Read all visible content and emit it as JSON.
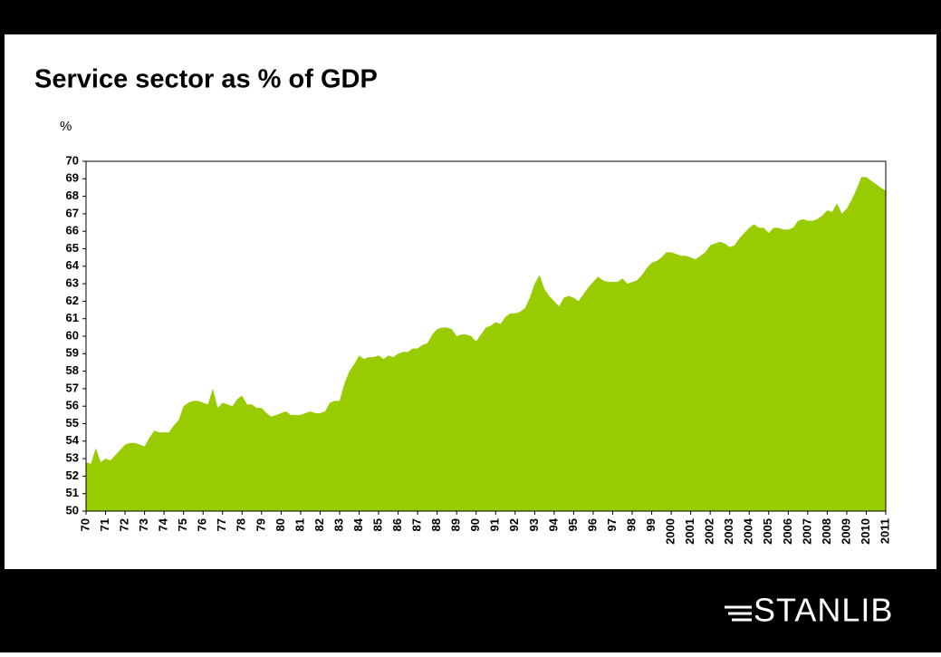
{
  "chart_data": {
    "type": "area",
    "title": "Service sector as % of GDP",
    "y_label": "%",
    "color": "#99cc00",
    "categories": [
      "70",
      null,
      null,
      null,
      "71",
      null,
      null,
      null,
      "72",
      null,
      null,
      null,
      "73",
      null,
      null,
      null,
      "74",
      null,
      null,
      null,
      "75",
      null,
      null,
      null,
      "76",
      null,
      null,
      null,
      "77",
      null,
      null,
      null,
      "78",
      null,
      null,
      null,
      "79",
      null,
      null,
      null,
      "80",
      null,
      null,
      null,
      "81",
      null,
      null,
      null,
      "82",
      null,
      null,
      null,
      "83",
      null,
      null,
      null,
      "84",
      null,
      null,
      null,
      "85",
      null,
      null,
      null,
      "86",
      null,
      null,
      null,
      "87",
      null,
      null,
      null,
      "88",
      null,
      null,
      null,
      "89",
      null,
      null,
      null,
      "90",
      null,
      null,
      null,
      "91",
      null,
      null,
      null,
      "92",
      null,
      null,
      null,
      "93",
      null,
      null,
      null,
      "94",
      null,
      null,
      null,
      "95",
      null,
      null,
      null,
      "96",
      null,
      null,
      null,
      "97",
      null,
      null,
      null,
      "98",
      null,
      null,
      null,
      "99",
      null,
      null,
      null,
      "2000",
      null,
      null,
      null,
      "2001",
      null,
      null,
      null,
      "2002",
      null,
      null,
      null,
      "2003",
      null,
      null,
      null,
      "2004",
      null,
      null,
      null,
      "2005",
      null,
      null,
      null,
      "2006",
      null,
      null,
      null,
      "2007",
      null,
      null,
      null,
      "2008",
      null,
      null,
      null,
      "2009",
      null,
      null,
      null,
      "2010",
      null,
      null,
      null,
      "2011"
    ],
    "values": [
      52.8,
      52.7,
      53.6,
      52.8,
      53.0,
      52.9,
      53.2,
      53.5,
      53.8,
      53.9,
      53.9,
      53.8,
      53.7,
      54.2,
      54.6,
      54.5,
      54.5,
      54.5,
      54.9,
      55.2,
      56.0,
      56.2,
      56.3,
      56.3,
      56.2,
      56.1,
      57.0,
      55.9,
      56.2,
      56.1,
      56.0,
      56.4,
      56.6,
      56.1,
      56.1,
      55.9,
      55.9,
      55.6,
      55.4,
      55.5,
      55.6,
      55.7,
      55.5,
      55.5,
      55.5,
      55.6,
      55.7,
      55.6,
      55.6,
      55.7,
      56.2,
      56.3,
      56.3,
      57.3,
      58.0,
      58.4,
      58.9,
      58.7,
      58.8,
      58.8,
      58.9,
      58.7,
      58.9,
      58.8,
      59.0,
      59.1,
      59.1,
      59.3,
      59.3,
      59.5,
      59.6,
      60.1,
      60.4,
      60.5,
      60.5,
      60.4,
      60.0,
      60.1,
      60.1,
      60.0,
      59.7,
      60.1,
      60.5,
      60.6,
      60.8,
      60.7,
      61.1,
      61.3,
      61.3,
      61.4,
      61.6,
      62.2,
      63.0,
      63.5,
      62.7,
      62.3,
      62.0,
      61.7,
      62.2,
      62.3,
      62.2,
      62.0,
      62.4,
      62.8,
      63.1,
      63.4,
      63.2,
      63.1,
      63.1,
      63.1,
      63.3,
      63.0,
      63.1,
      63.2,
      63.5,
      63.9,
      64.2,
      64.3,
      64.5,
      64.8,
      64.8,
      64.7,
      64.6,
      64.6,
      64.5,
      64.4,
      64.6,
      64.8,
      65.2,
      65.3,
      65.4,
      65.3,
      65.1,
      65.2,
      65.6,
      65.9,
      66.2,
      66.4,
      66.2,
      66.2,
      65.9,
      66.2,
      66.2,
      66.1,
      66.1,
      66.2,
      66.6,
      66.7,
      66.6,
      66.6,
      66.7,
      66.9,
      67.2,
      67.1,
      67.6,
      67.0,
      67.3,
      67.8,
      68.4,
      69.1,
      69.1,
      68.9,
      68.7,
      68.5,
      68.3
    ],
    "ylim": [
      50,
      70
    ],
    "yticks": [
      50,
      51,
      52,
      53,
      54,
      55,
      56,
      57,
      58,
      59,
      60,
      61,
      62,
      63,
      64,
      65,
      66,
      67,
      68,
      69,
      70
    ]
  },
  "logo": {
    "text": "STANLIB"
  }
}
